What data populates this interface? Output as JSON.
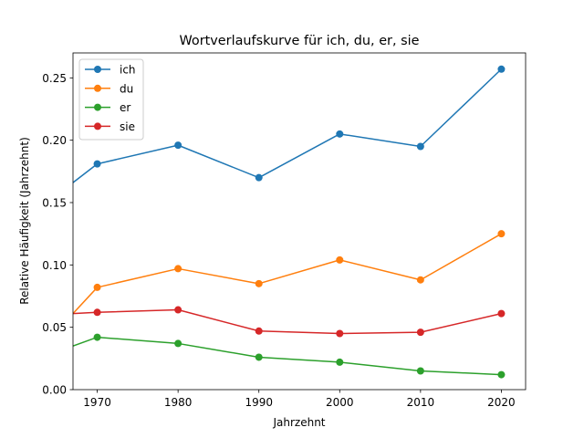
{
  "chart_data": {
    "type": "line",
    "title": "Wortverlaufskurve für ich, du, er, sie",
    "xlabel": "Jahrzehnt",
    "ylabel": "Relative Häufigkeit (Jahrzehnt)",
    "xlim": [
      1967,
      2023
    ],
    "ylim": [
      0,
      0.27
    ],
    "xticks": [
      1970,
      1980,
      1990,
      2000,
      2010,
      2020
    ],
    "xtick_labels": [
      "1970",
      "1980",
      "1990",
      "2000",
      "2010",
      "2020"
    ],
    "yticks": [
      0,
      0.05,
      0.1,
      0.15,
      0.2,
      0.25
    ],
    "ytick_labels": [
      "0.00",
      "0.05",
      "0.10",
      "0.15",
      "0.20",
      "0.25"
    ],
    "grid": false,
    "legend_position": "top-left",
    "series": [
      {
        "name": "ich",
        "color": "#1f77b4",
        "line_start": [
          1967,
          0.166
        ],
        "x": [
          1970,
          1980,
          1990,
          2000,
          2010,
          2020
        ],
        "values": [
          0.181,
          0.196,
          0.17,
          0.205,
          0.195,
          0.257
        ]
      },
      {
        "name": "du",
        "color": "#ff7f0e",
        "line_start": [
          1967,
          0.061
        ],
        "x": [
          1970,
          1980,
          1990,
          2000,
          2010,
          2020
        ],
        "values": [
          0.082,
          0.097,
          0.085,
          0.104,
          0.088,
          0.125
        ]
      },
      {
        "name": "er",
        "color": "#2ca02c",
        "line_start": [
          1967,
          0.035
        ],
        "x": [
          1970,
          1980,
          1990,
          2000,
          2010,
          2020
        ],
        "values": [
          0.042,
          0.037,
          0.026,
          0.022,
          0.015,
          0.012
        ]
      },
      {
        "name": "sie",
        "color": "#d62728",
        "line_start": [
          1967,
          0.061
        ],
        "x": [
          1970,
          1980,
          1990,
          2000,
          2010,
          2020
        ],
        "values": [
          0.062,
          0.064,
          0.047,
          0.045,
          0.046,
          0.061
        ]
      }
    ]
  }
}
